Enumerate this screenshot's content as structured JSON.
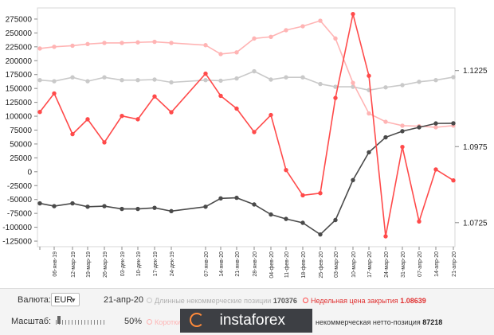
{
  "chart_data": {
    "type": "line",
    "x": [
      "",
      "06-янв-19",
      "12-мар-19",
      "19-мар-19",
      "26-мар-19",
      "03-дек-19",
      "10-дек-19",
      "17-дек-19",
      "24-дек-19",
      "07-янв-20",
      "14-янв-20",
      "21-янв-20",
      "28-янв-20",
      "04-фев-20",
      "11-фев-20",
      "18-фев-20",
      "25-фев-20",
      "03-мар-20",
      "10-мар-20",
      "17-мар-20",
      "24-мар-20",
      "31-мар-20",
      "07-апр-20",
      "14-апр-20",
      "21-апр-20"
    ],
    "left_axis": {
      "ticks": [
        "275000",
        "250000",
        "225000",
        "200000",
        "175000",
        "150000",
        "125000",
        "100000",
        "75000",
        "50000",
        "25000",
        "0",
        "-25000",
        "-50000",
        "-75000",
        "-100000",
        "-125000"
      ],
      "range": [
        -135000,
        295000
      ]
    },
    "right_axis": {
      "ticks": [
        "1.1225",
        "1.0975",
        "1.0725"
      ],
      "range": [
        1.0646,
        1.1431
      ]
    },
    "series": [
      {
        "name": "Длинные некоммерческие позиции",
        "axis": "left",
        "color": "#c9c9c9",
        "values": [
          165000,
          163000,
          170000,
          163000,
          170000,
          165000,
          165000,
          166000,
          161000,
          165000,
          164000,
          168000,
          181000,
          166000,
          170000,
          170000,
          158000,
          153000,
          153000,
          147000,
          152000,
          156000,
          162000,
          165000,
          170376
        ]
      },
      {
        "name": "Короткие некоммерческие позиции",
        "axis": "left",
        "color": "#ffb4b4",
        "values": [
          222000,
          225000,
          227000,
          230000,
          232000,
          232000,
          233000,
          234000,
          232000,
          228000,
          212000,
          215000,
          240000,
          243000,
          255000,
          262000,
          272000,
          240000,
          160000,
          105000,
          90000,
          83000,
          82000,
          80000,
          83158
        ]
      },
      {
        "name": "Некоммерческая нетто-позиция",
        "axis": "left",
        "color": "#4a4a4a",
        "values": [
          -57000,
          -62000,
          -57000,
          -63000,
          -62000,
          -67000,
          -67000,
          -65000,
          -71000,
          -63000,
          -48000,
          -47000,
          -59000,
          -77000,
          -85000,
          -92000,
          -113000,
          -87000,
          -15000,
          35000,
          62000,
          73000,
          80000,
          87000,
          87218
        ]
      },
      {
        "name": "Недельная цена закрытия",
        "axis": "right",
        "color": "#ff4a4a",
        "values": [
          1.1089,
          1.115,
          1.1016,
          1.1065,
          1.0989,
          1.1076,
          1.1065,
          1.114,
          1.1088,
          1.1215,
          1.1142,
          1.11,
          1.1023,
          1.1079,
          1.0898,
          1.0815,
          1.0822,
          1.1135,
          1.1411,
          1.1208,
          1.068,
          1.0974,
          1.0729,
          1.09,
          1.08639
        ]
      }
    ]
  },
  "controls": {
    "currency_label": "Валюта:",
    "currency_value": "EUR",
    "date": "21-апр-20",
    "scale_label": "Масштаб:",
    "scale_value": "50%",
    "legend": {
      "long": "Длинные некоммерческие позиции",
      "long_value": "170376",
      "close": "Недельная цена закрытия",
      "close_value": "1.08639",
      "short": "Короткие",
      "net": "некоммерческая нетто-позиция",
      "net_value": "87218"
    },
    "watermark": "instaforex"
  },
  "colors": {
    "long": "#c9c9c9",
    "short": "#ffb4b4",
    "net": "#4a4a4a",
    "close": "#ff4a4a",
    "watermark_bg": "#3d3f44",
    "watermark_accent": "#ff8a3a"
  }
}
